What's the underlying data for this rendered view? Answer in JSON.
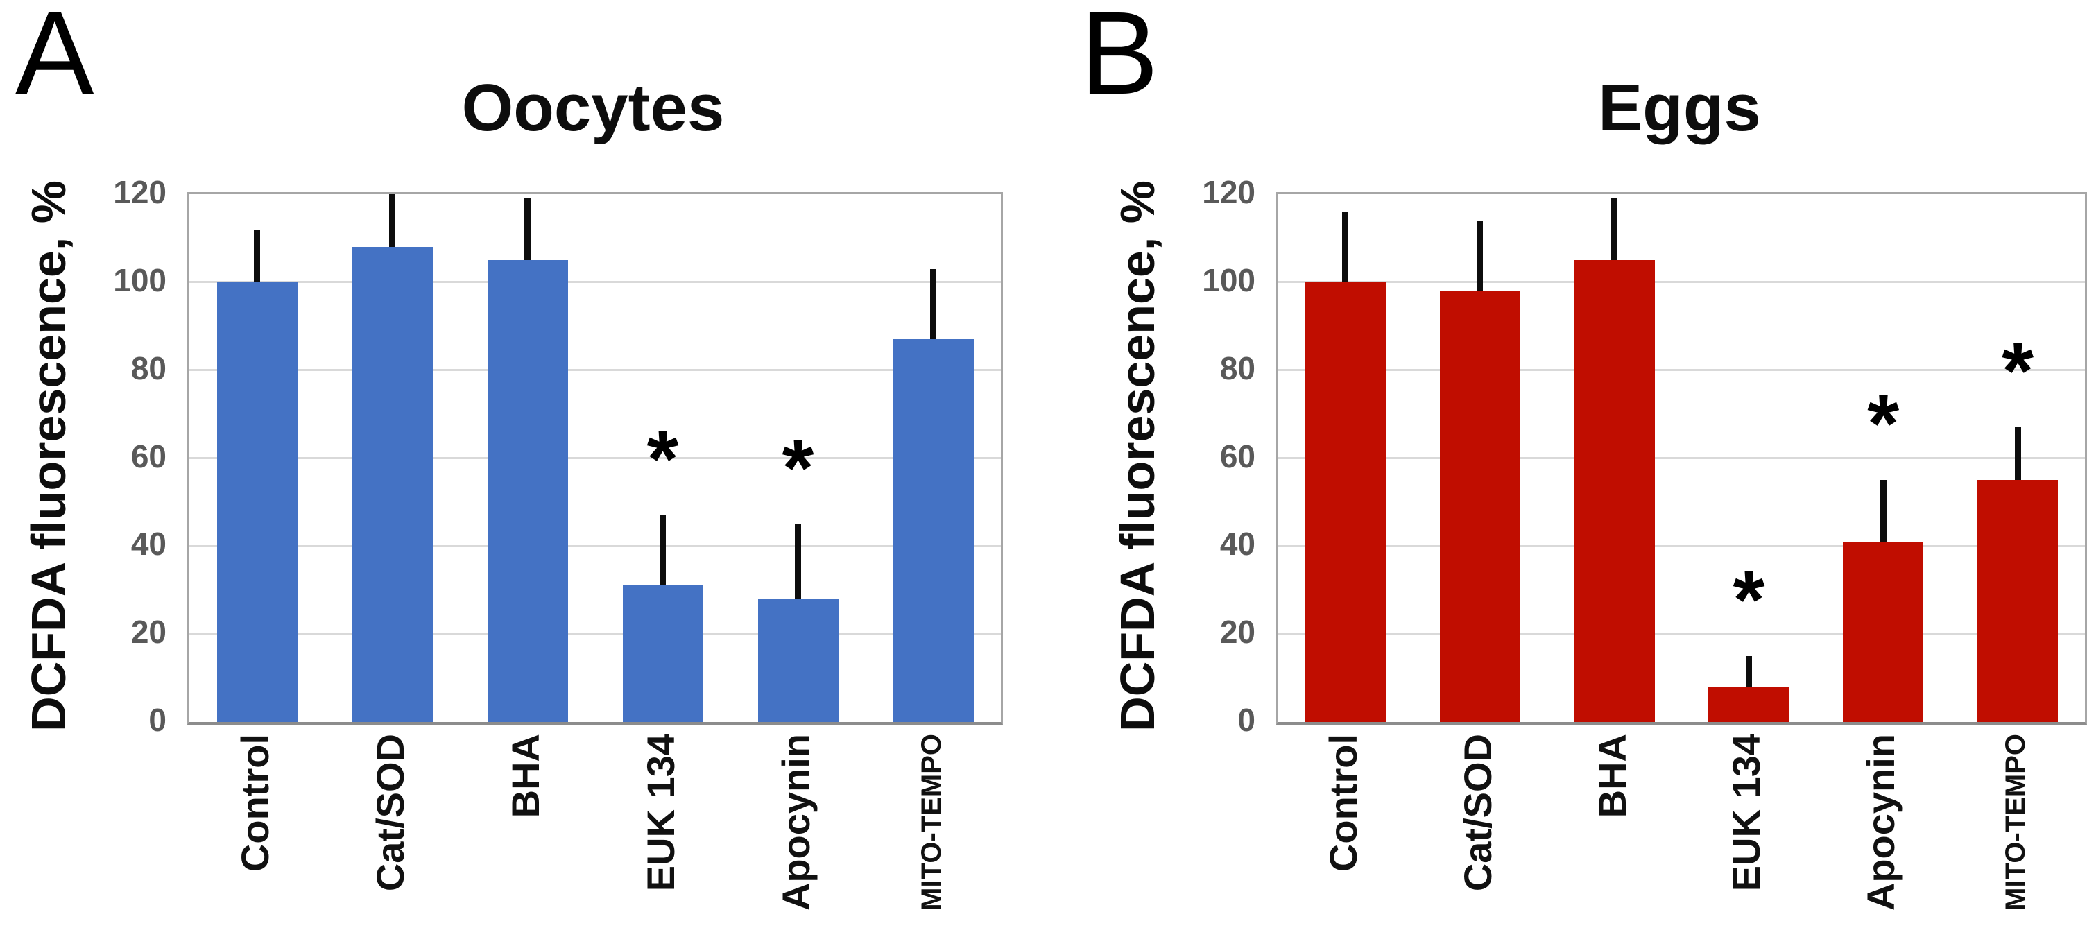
{
  "figure": {
    "ylabel": "DCFDA fluorescence, %",
    "yticks": [
      0,
      20,
      40,
      60,
      80,
      100,
      120
    ],
    "categories": [
      "Control",
      "Cat/SOD",
      "BHA",
      "EUK 134",
      "Apocynin",
      "MITO-TEMPO"
    ],
    "significance_marker": "*",
    "colors": {
      "oocytes_bar": "#4472c4",
      "eggs_bar": "#c00d00",
      "error_bar": "#0d0d0d",
      "tick_text": "#595959",
      "gridline": "#d9d9d9",
      "plot_border": "#a6a6a6"
    }
  },
  "chart_data": [
    {
      "type": "bar",
      "panel_label": "A",
      "title": "Oocytes",
      "xlabel": "",
      "ylabel": "DCFDA fluorescence, %",
      "ylim": [
        0,
        120
      ],
      "yticks": [
        0,
        20,
        40,
        60,
        80,
        100,
        120
      ],
      "grid": true,
      "legend": "none",
      "bar_color": "#4472c4",
      "categories": [
        "Control",
        "Cat/SOD",
        "BHA",
        "EUK 134",
        "Apocynin",
        "MITO-TEMPO"
      ],
      "values": [
        100,
        108,
        105,
        31,
        28,
        87
      ],
      "error_plus": [
        12,
        12,
        14,
        16,
        17,
        16
      ],
      "significant": [
        false,
        false,
        false,
        true,
        true,
        false
      ]
    },
    {
      "type": "bar",
      "panel_label": "B",
      "title": "Eggs",
      "xlabel": "",
      "ylabel": "DCFDA fluorescence, %",
      "ylim": [
        0,
        120
      ],
      "yticks": [
        0,
        20,
        40,
        60,
        80,
        100,
        120
      ],
      "grid": true,
      "legend": "none",
      "bar_color": "#c00d00",
      "categories": [
        "Control",
        "Cat/SOD",
        "BHA",
        "EUK 134",
        "Apocynin",
        "MITO-TEMPO"
      ],
      "values": [
        100,
        98,
        105,
        8,
        41,
        55
      ],
      "error_plus": [
        16,
        16,
        14,
        7,
        14,
        12
      ],
      "significant": [
        false,
        false,
        false,
        true,
        true,
        true
      ]
    }
  ]
}
